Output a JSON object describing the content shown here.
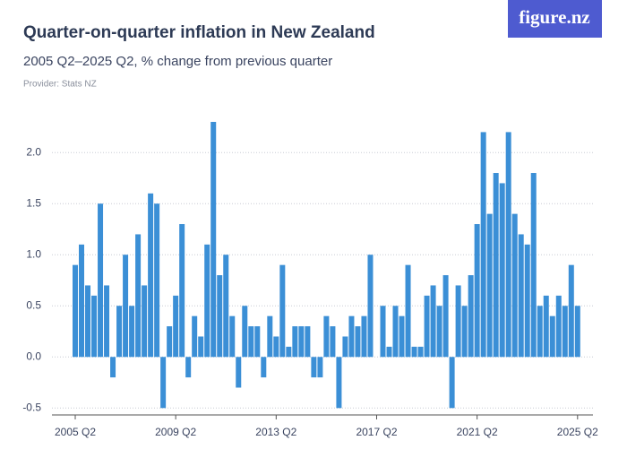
{
  "logo": "figure.nz",
  "chart_data": {
    "type": "bar",
    "title": "Quarter-on-quarter inflation in New Zealand",
    "subtitle": "2005 Q2–2025 Q2, % change from previous quarter",
    "provider": "Provider: Stats NZ",
    "color": "#3b8fd6",
    "grid": true,
    "categories": [
      "2005 Q2",
      null,
      null,
      null,
      null,
      null,
      null,
      null,
      null,
      null,
      null,
      null,
      null,
      null,
      null,
      null,
      "2009 Q2",
      null,
      null,
      null,
      null,
      null,
      null,
      null,
      null,
      null,
      null,
      null,
      null,
      null,
      null,
      null,
      "2013 Q2",
      null,
      null,
      null,
      null,
      null,
      null,
      null,
      null,
      null,
      null,
      null,
      null,
      null,
      null,
      null,
      "2017 Q2",
      null,
      null,
      null,
      null,
      null,
      null,
      null,
      null,
      null,
      null,
      null,
      null,
      null,
      null,
      null,
      "2021 Q2",
      null,
      null,
      null,
      null,
      null,
      null,
      null,
      null,
      null,
      null,
      null,
      null,
      null,
      null,
      null,
      "2025 Q2"
    ],
    "values": [
      0.9,
      1.1,
      0.7,
      0.6,
      1.5,
      0.7,
      -0.2,
      0.5,
      1.0,
      0.5,
      1.2,
      0.7,
      1.6,
      1.5,
      -0.5,
      0.3,
      0.6,
      1.3,
      -0.2,
      0.4,
      0.2,
      1.1,
      2.3,
      0.8,
      1.0,
      0.4,
      -0.3,
      0.5,
      0.3,
      0.3,
      -0.2,
      0.4,
      0.2,
      0.9,
      0.1,
      0.3,
      0.3,
      0.3,
      -0.2,
      -0.2,
      0.4,
      0.3,
      -0.5,
      0.2,
      0.4,
      0.3,
      0.4,
      1.0,
      0.0,
      0.5,
      0.1,
      0.5,
      0.4,
      0.9,
      0.1,
      0.1,
      0.6,
      0.7,
      0.5,
      0.8,
      -0.5,
      0.7,
      0.5,
      0.8,
      1.3,
      2.2,
      1.4,
      1.8,
      1.7,
      2.2,
      1.4,
      1.2,
      1.1,
      1.8,
      0.5,
      0.6,
      0.4,
      0.6,
      0.5,
      0.9,
      0.5
    ],
    "ylim": [
      -0.55,
      2.3
    ],
    "yticks": [
      -0.5,
      {
        "value": 0,
        "label": "0.0"
      },
      0.5,
      {
        "value": 1,
        "label": "1.0"
      },
      1.5,
      {
        "value": 2,
        "label": "2.0"
      }
    ]
  }
}
